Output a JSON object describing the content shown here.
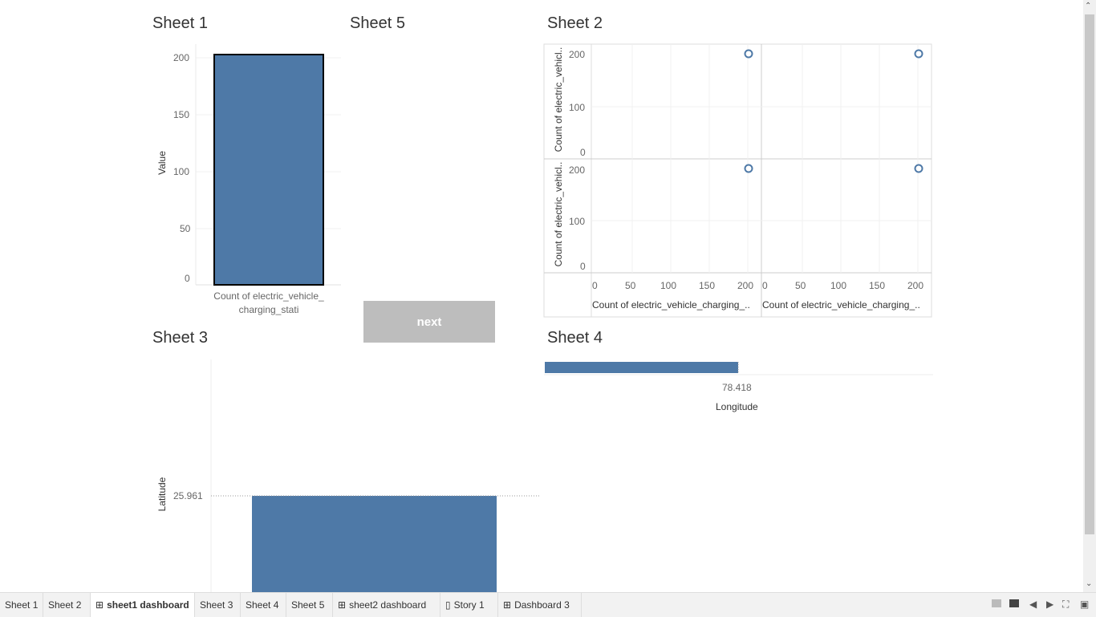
{
  "sheet1": {
    "title": "Sheet 1",
    "ylabel": "Value",
    "xlabel_line1": "Count of electric_vehicle_",
    "xlabel_line2": "charging_stati",
    "ticks": [
      "200",
      "150",
      "100",
      "50",
      "0"
    ]
  },
  "sheet5": {
    "title": "Sheet 5",
    "next_label": "next"
  },
  "sheet2": {
    "title": "Sheet 2",
    "ylabel_top": "Count of electric_vehicl..",
    "ylabel_bottom": "Count of electric_vehicl..",
    "yticks": [
      "200",
      "100",
      "0"
    ],
    "xticks": [
      "0",
      "50",
      "100",
      "150",
      "200"
    ],
    "xlabel_left": "Count of electric_vehicle_charging_..",
    "xlabel_right": "Count of electric_vehicle_charging_.."
  },
  "sheet3": {
    "title": "Sheet 3",
    "ylabel": "Latitude",
    "tick": "25.961"
  },
  "sheet4": {
    "title": "Sheet 4",
    "tick": "78.418",
    "xlabel": "Longitude"
  },
  "tabs": [
    {
      "label": "Sheet 1",
      "icon": ""
    },
    {
      "label": "Sheet 2",
      "icon": ""
    },
    {
      "label": "sheet1 dashboard",
      "icon": "⊞",
      "active": true
    },
    {
      "label": "Sheet 3",
      "icon": ""
    },
    {
      "label": "Sheet 4",
      "icon": ""
    },
    {
      "label": "Sheet 5",
      "icon": ""
    },
    {
      "label": "sheet2 dashboard",
      "icon": "⊞"
    },
    {
      "label": "Story 1",
      "icon": "▯"
    },
    {
      "label": "Dashboard 3",
      "icon": "⊞"
    }
  ],
  "bar_color": "#4e79a7",
  "chart_data": [
    {
      "type": "bar",
      "title": "Sheet 1",
      "ylabel": "Value",
      "categories": [
        "Count of electric_vehicle_charging_stati"
      ],
      "values": [
        203
      ],
      "ylim": [
        0,
        200
      ]
    },
    {
      "type": "scatter",
      "title": "Sheet 2",
      "panels": [
        {
          "x": 200,
          "y": 203
        },
        {
          "x": 200,
          "y": 203
        },
        {
          "x": 200,
          "y": 203
        },
        {
          "x": 200,
          "y": 203
        }
      ],
      "xlim": [
        0,
        200
      ],
      "ylim": [
        0,
        200
      ]
    },
    {
      "type": "bar",
      "title": "Sheet 3",
      "ylabel": "Latitude",
      "values": [
        25.961
      ]
    },
    {
      "type": "bar",
      "title": "Sheet 4",
      "xlabel": "Longitude",
      "values": [
        78.418
      ]
    }
  ]
}
